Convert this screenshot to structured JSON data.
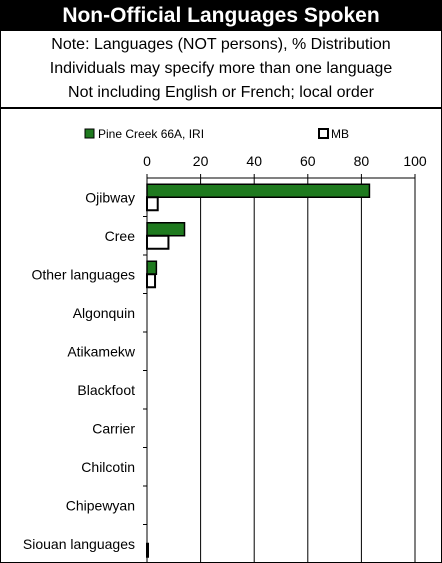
{
  "title": "Non-Official Languages Spoken",
  "notes": [
    "Note: Languages (NOT persons), % Distribution",
    "Individuals may specify more than one language",
    "Not including English or French; local order"
  ],
  "colors": {
    "series1": "#1f7a1f",
    "series2": "#ffffff",
    "stroke": "#000000"
  },
  "chart_data": {
    "type": "bar",
    "orientation": "horizontal",
    "categories": [
      "Ojibway",
      "Cree",
      "Other languages",
      "Algonquin",
      "Atikamekw",
      "Blackfoot",
      "Carrier",
      "Chilcotin",
      "Chipewyan",
      "Siouan languages"
    ],
    "series": [
      {
        "name": "Pine Creek 66A, IRI",
        "values": [
          83,
          14,
          3.5,
          0,
          0,
          0,
          0,
          0,
          0,
          0
        ]
      },
      {
        "name": "MB",
        "values": [
          4,
          8,
          3,
          0,
          0,
          0,
          0,
          0,
          0,
          0.3
        ]
      }
    ],
    "xlim": [
      0,
      100
    ],
    "xticks": [
      0,
      20,
      40,
      60,
      80,
      100
    ],
    "grid": true,
    "legend_position": "top"
  }
}
